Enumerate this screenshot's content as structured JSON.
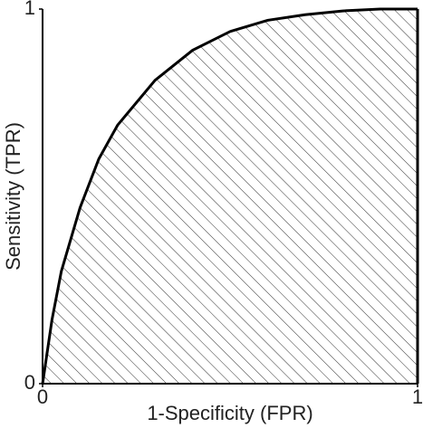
{
  "chart_data": {
    "type": "area",
    "xlabel": "1-Specificity (FPR)",
    "ylabel": "Sensitivity (TPR)",
    "x": [
      0,
      0.025,
      0.05,
      0.1,
      0.15,
      0.2,
      0.3,
      0.4,
      0.5,
      0.6,
      0.7,
      0.8,
      0.9,
      1
    ],
    "series": [
      {
        "color": "#000000",
        "values": [
          0,
          0.17,
          0.3,
          0.47,
          0.6,
          0.69,
          0.81,
          0.89,
          0.94,
          0.97,
          0.985,
          0.995,
          1,
          1
        ]
      }
    ],
    "fill_pattern": "hatch",
    "xlim": [
      0,
      1
    ],
    "ylim": [
      0,
      1
    ],
    "xticks": [
      0,
      1
    ],
    "yticks": [
      0,
      1
    ]
  }
}
